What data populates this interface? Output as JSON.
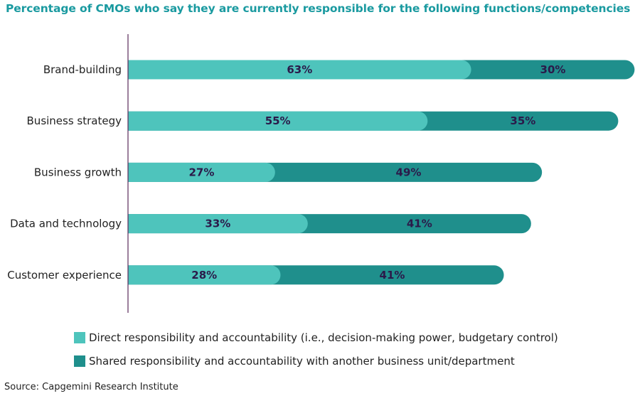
{
  "colors": {
    "title": "#1a9aa0",
    "direct": "#4ec4bc",
    "shared": "#1f8f8c",
    "axis": "#5a2a5a",
    "value_text": "#2b1a4a"
  },
  "chart_data": {
    "type": "bar",
    "orientation": "horizontal",
    "stacked": true,
    "title": "Percentage of CMOs who say they are currently responsible for the following functions/competencies",
    "categories": [
      "Brand-building",
      "Business strategy",
      "Business growth",
      "Data and technology",
      "Customer experience"
    ],
    "series": [
      {
        "name": "Direct responsibility and accountability (i.e., decision-making power, budgetary control)",
        "values": [
          63,
          55,
          27,
          33,
          28
        ],
        "labels": [
          "63%",
          "55%",
          "27%",
          "33%",
          "28%"
        ]
      },
      {
        "name": "Shared responsibility and accountability with another business unit/department",
        "values": [
          30,
          35,
          49,
          41,
          41
        ],
        "labels": [
          "30%",
          "35%",
          "49%",
          "41%",
          "41%"
        ]
      }
    ],
    "xlim": [
      0,
      93
    ],
    "grid": false,
    "legend_position": "bottom",
    "source": "Source: Capgemini Research Institute"
  }
}
